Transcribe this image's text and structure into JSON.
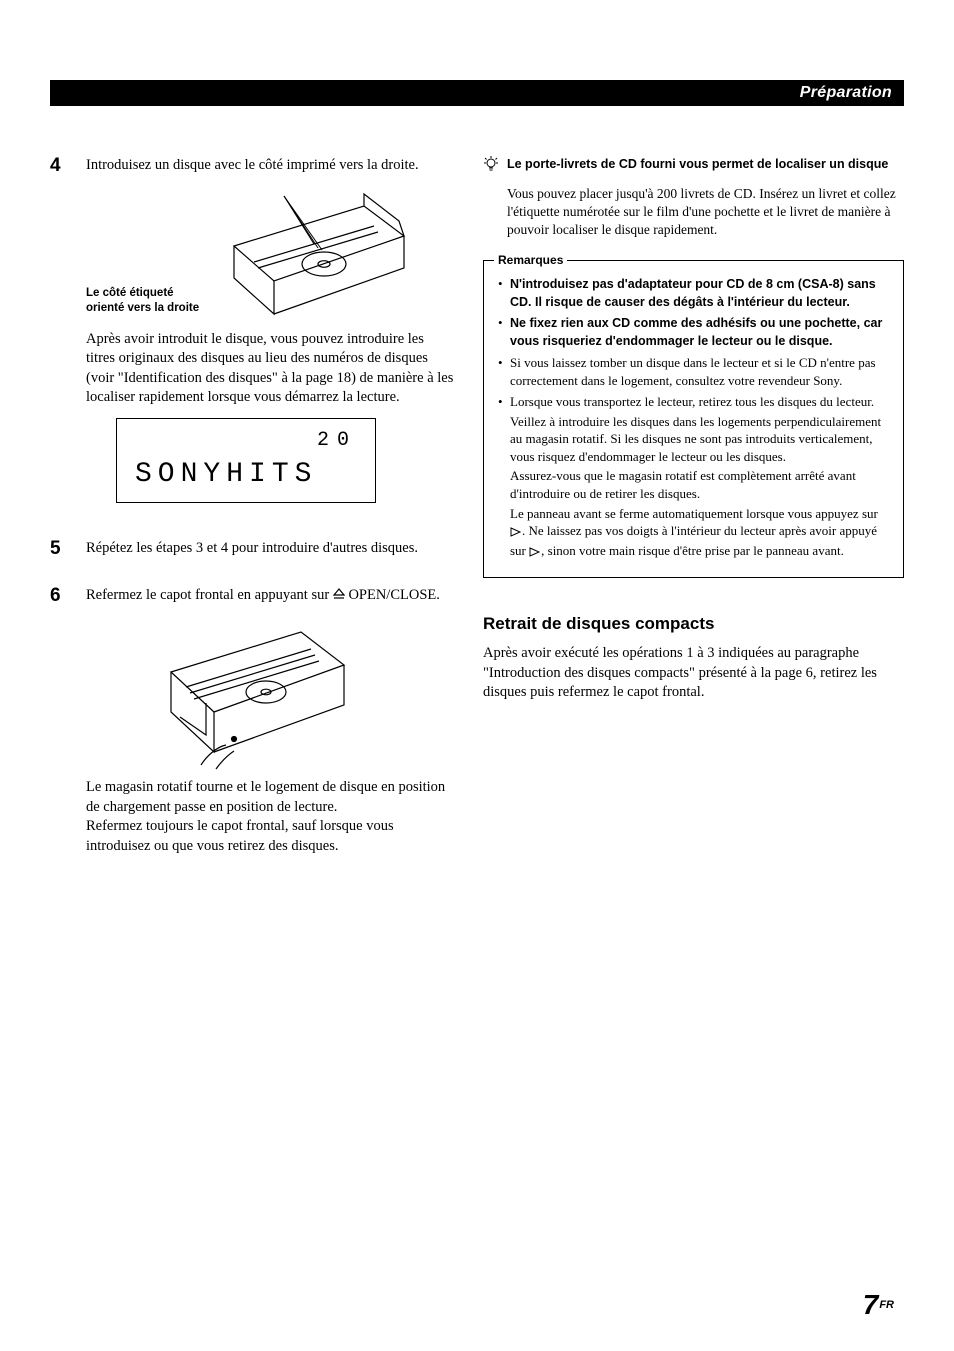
{
  "header": {
    "section_title": "Préparation"
  },
  "left": {
    "step4": {
      "num": "4",
      "text": "Introduisez un disque avec le côté imprimé vers la droite.",
      "fig_caption": "Le côté étiqueté orienté vers la droite",
      "after_fig": "Après avoir introduit le disque, vous pouvez introduire les titres originaux des disques au lieu des numéros de disques (voir \"Identification des disques\" à la page 18) de manière à les localiser rapidement lorsque vous démarrez la lecture."
    },
    "display": {
      "line1": "20",
      "line2": "SONYHITS"
    },
    "step5": {
      "num": "5",
      "text": "Répétez les étapes 3 et 4 pour introduire d'autres disques."
    },
    "step6": {
      "num": "6",
      "text_before_symbol": "Refermez le capot frontal en appuyant sur",
      "text_after_symbol": " OPEN/CLOSE.",
      "after_fig": "Le magasin rotatif tourne et le logement de disque en position de chargement passe en position de lecture.\nRefermez toujours le capot frontal, sauf lorsque vous introduisez ou que vous retirez des disques."
    }
  },
  "right": {
    "tip": {
      "title": "Le porte-livrets de CD fourni vous permet de localiser un disque",
      "body": "Vous pouvez placer jusqu'à 200 livrets de CD. Insérez un livret et collez l'étiquette numérotée sur le film d'une pochette et le livret de manière à pouvoir localiser le disque rapidement."
    },
    "remarks": {
      "title": "Remarques",
      "items": [
        {
          "bold": true,
          "text": "N'introduisez pas d'adaptateur pour CD de 8 cm (CSA-8) sans CD. Il risque de causer des dégâts à l'intérieur du lecteur."
        },
        {
          "bold": true,
          "text": "Ne fixez rien aux CD comme des adhésifs ou une pochette, car vous risqueriez d'endommager le lecteur ou le disque."
        },
        {
          "bold": false,
          "text": "Si vous laissez tomber un disque dans le lecteur et si le CD n'entre pas correctement dans le logement, consultez votre revendeur Sony."
        },
        {
          "bold": false,
          "text": "Lorsque vous transportez le lecteur, retirez tous les disques du lecteur.",
          "sub": [
            "Veillez à introduire les disques dans les logements perpendiculairement au magasin rotatif. Si les disques ne sont pas introduits verticalement, vous risquez d'endommager le lecteur ou les disques.",
            "Assurez-vous que le magasin rotatif est complètement arrêté avant d'introduire ou de retirer les disques.",
            "Le panneau avant se ferme automatiquement lorsque vous appuyez sur ▷. Ne laissez pas vos doigts à l'intérieur du lecteur après avoir appuyé sur ▷, sinon votre main risque d'être prise par le panneau avant."
          ]
        }
      ]
    },
    "retrait": {
      "heading": "Retrait de disques compacts",
      "body": "Après avoir exécuté les opérations 1 à 3 indiquées au paragraphe \"Introduction des disques compacts\" présenté à la page 6, retirez les disques puis refermez le capot frontal."
    }
  },
  "footer": {
    "page": "7",
    "lang": "FR"
  },
  "colors": {
    "ink": "#000000",
    "paper": "#ffffff"
  }
}
